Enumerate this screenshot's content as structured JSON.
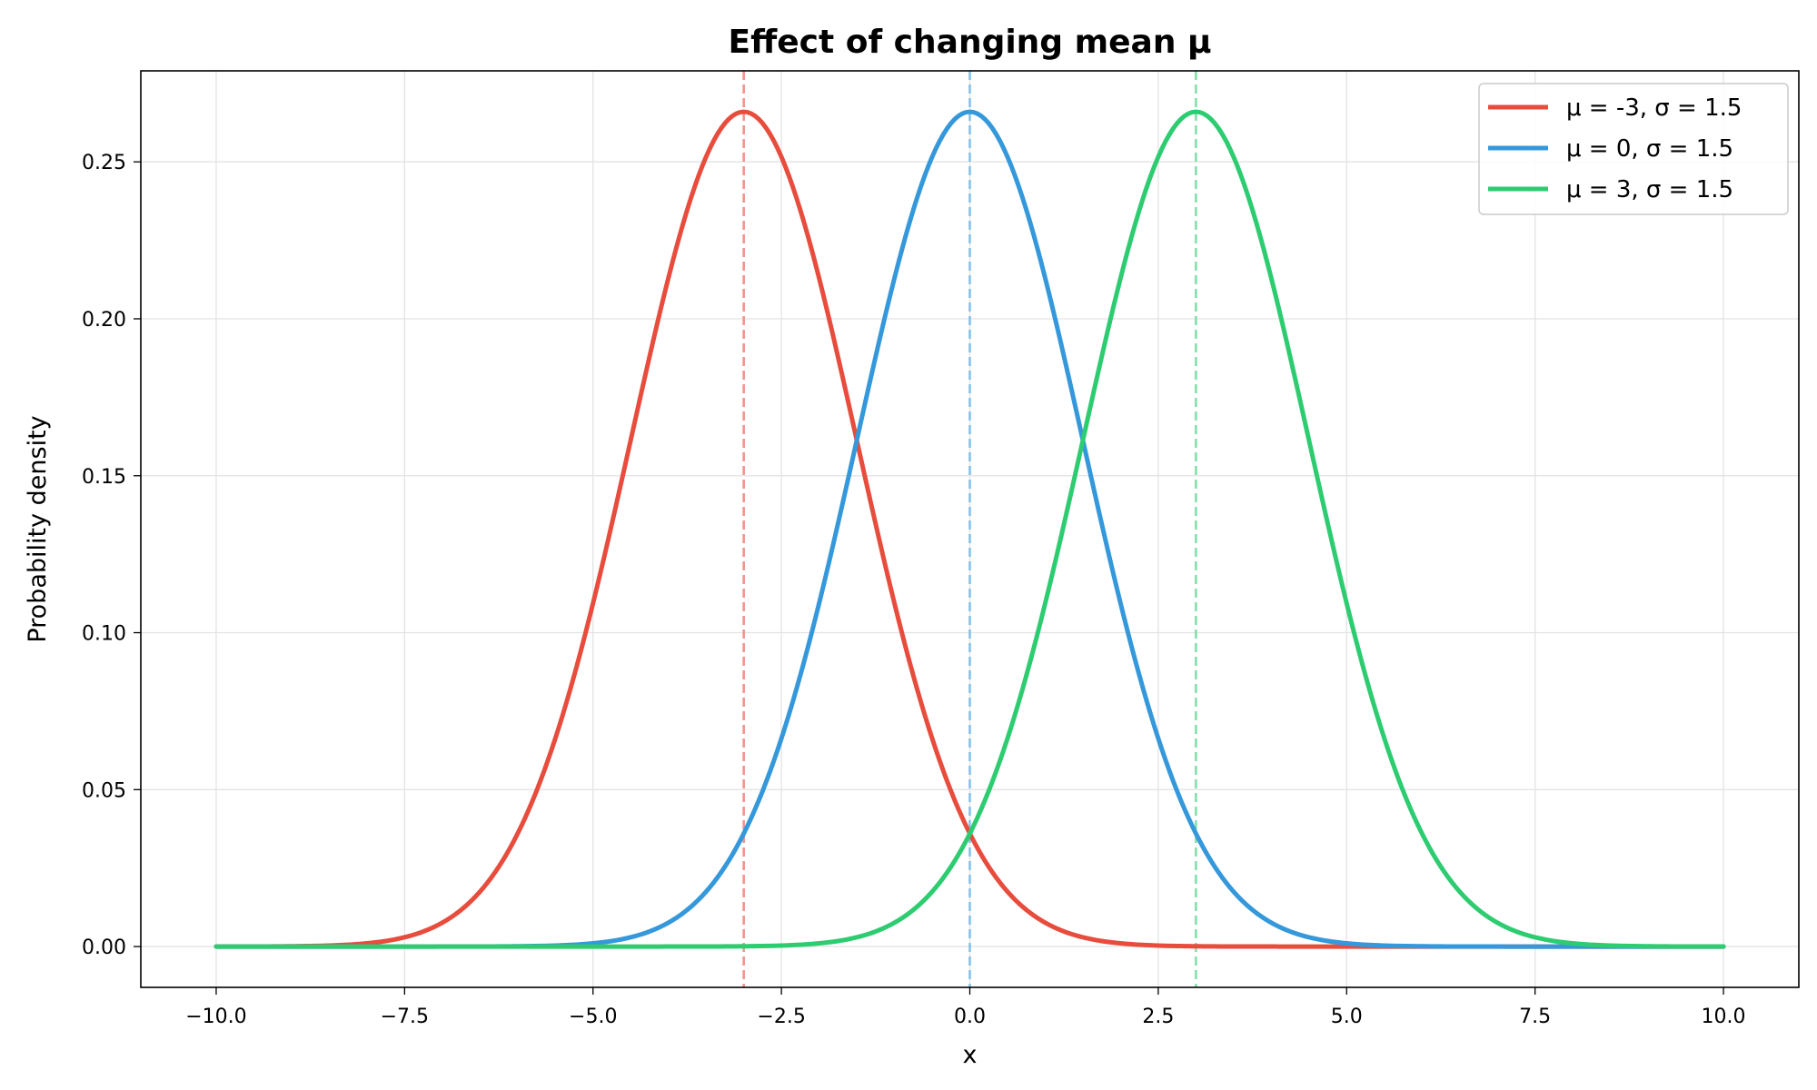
{
  "chart_data": {
    "type": "line",
    "title": "Effect of changing mean μ",
    "xlabel": "x",
    "ylabel": "Probability density",
    "xlim": [
      -11,
      11
    ],
    "ylim": [
      -0.013,
      0.279
    ],
    "x_range": [
      -10,
      10
    ],
    "xticks": [
      -10.0,
      -7.5,
      -5.0,
      -2.5,
      0.0,
      2.5,
      5.0,
      7.5,
      10.0
    ],
    "xtick_labels": [
      "−10.0",
      "−7.5",
      "−5.0",
      "−2.5",
      "0.0",
      "2.5",
      "5.0",
      "7.5",
      "10.0"
    ],
    "yticks": [
      0.0,
      0.05,
      0.1,
      0.15,
      0.2,
      0.25
    ],
    "ytick_labels": [
      "0.00",
      "0.05",
      "0.10",
      "0.15",
      "0.20",
      "0.25"
    ],
    "grid": true,
    "legend_position": "top-right",
    "series": [
      {
        "name": "μ = -3, σ = 1.5",
        "mu": -3,
        "sigma": 1.5,
        "color": "#e74c3c",
        "mean_line_color": "#f1948a"
      },
      {
        "name": "μ = 0, σ = 1.5",
        "mu": 0,
        "sigma": 1.5,
        "color": "#3498db",
        "mean_line_color": "#85c1e9"
      },
      {
        "name": "μ = 3, σ = 1.5",
        "mu": 3,
        "sigma": 1.5,
        "color": "#2ecc71",
        "mean_line_color": "#82e0aa"
      }
    ]
  }
}
